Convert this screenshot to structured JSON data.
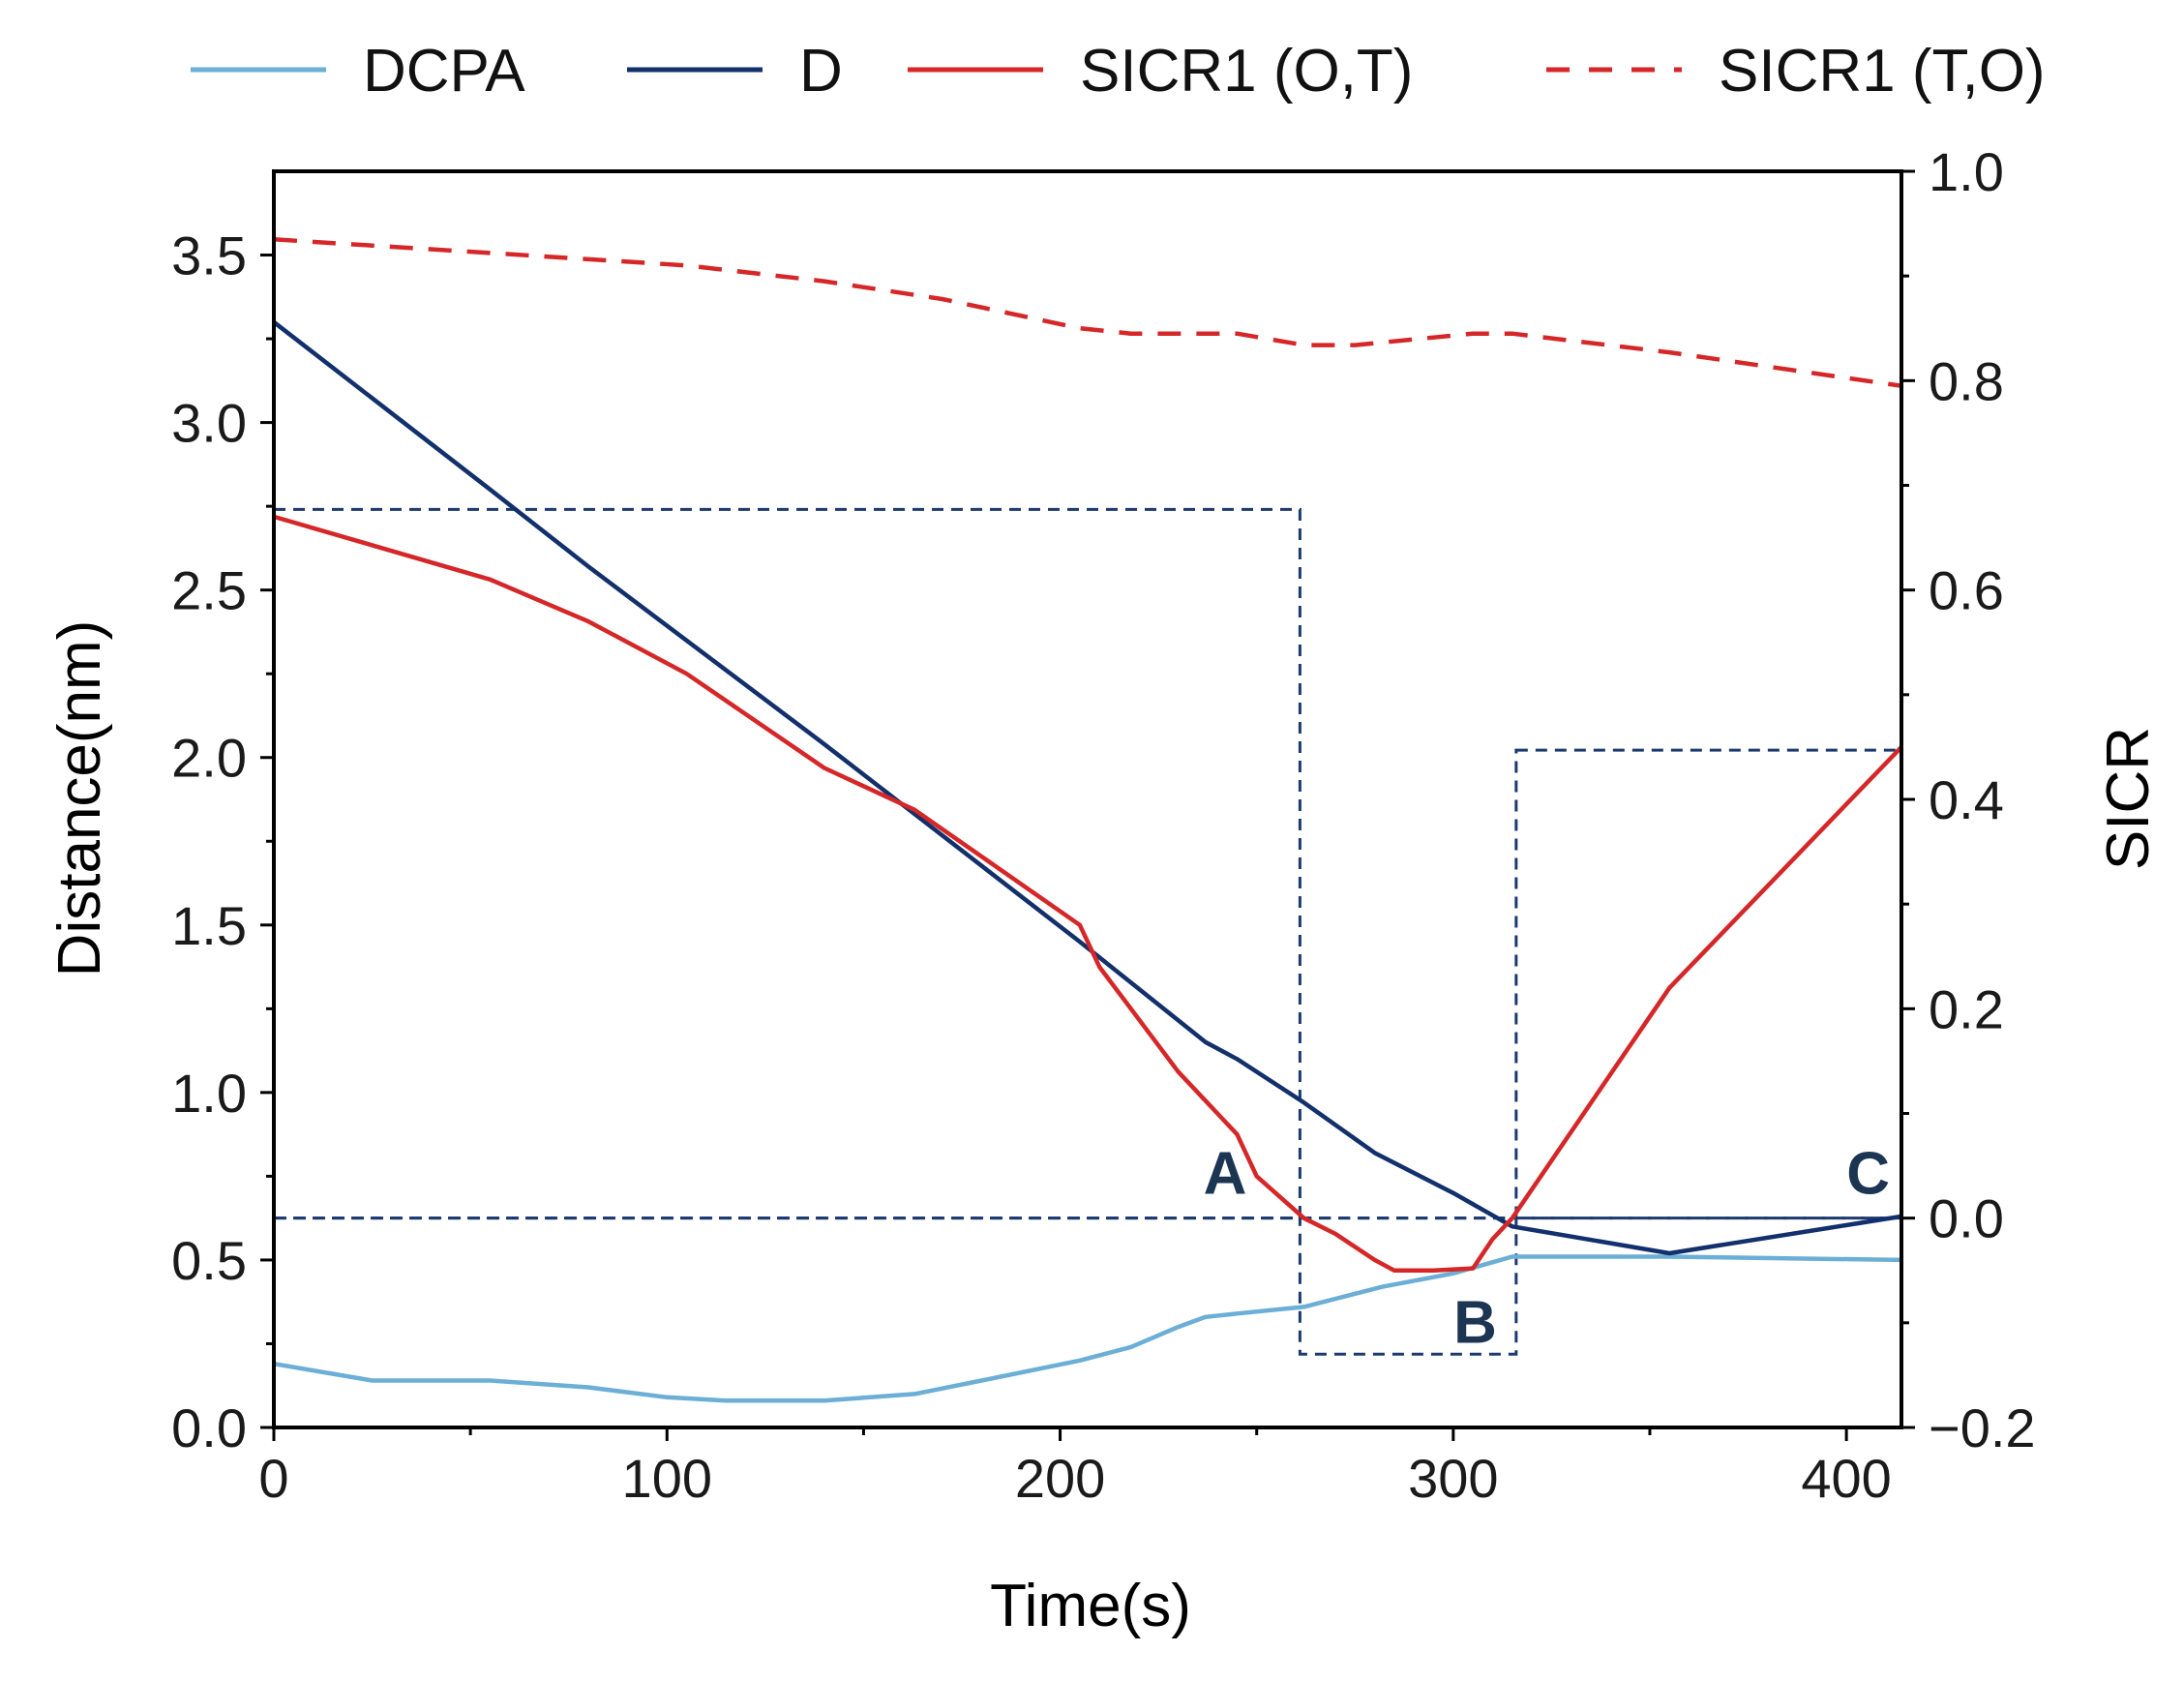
{
  "chart_data": {
    "type": "line",
    "title": "",
    "xlabel": "Time(s)",
    "ylabel": "Distance(nm)",
    "y2label": "SICR",
    "xlim": [
      0,
      414
    ],
    "ylim": [
      0,
      3.75
    ],
    "y2lim": [
      -0.2,
      1.0
    ],
    "x_ticks": [
      0,
      100,
      200,
      300,
      400
    ],
    "y_ticks": [
      0.0,
      0.5,
      1.0,
      1.5,
      2.0,
      2.5,
      3.0,
      3.5
    ],
    "y2_ticks": [
      -0.2,
      0.0,
      0.2,
      0.4,
      0.6,
      0.8,
      1.0
    ],
    "x_tick_labels": [
      "0",
      "100",
      "200",
      "300",
      "400"
    ],
    "y_tick_labels": [
      "0.0",
      "0.5",
      "1.0",
      "1.5",
      "2.0",
      "2.5",
      "3.0",
      "3.5"
    ],
    "y2_tick_labels": [
      "−0.2",
      "0.0",
      "0.2",
      "0.4",
      "0.6",
      "0.8",
      "1.0"
    ],
    "legend_position": "top",
    "series": [
      {
        "name": "DCPA",
        "axis": "left",
        "color": "#6baed6",
        "dash": "solid",
        "x": [
          0,
          25,
          55,
          80,
          100,
          115,
          140,
          163,
          180,
          205,
          218,
          230,
          237,
          245,
          262,
          282,
          300,
          315,
          330,
          355,
          414
        ],
        "y": [
          0.19,
          0.14,
          0.14,
          0.12,
          0.09,
          0.08,
          0.08,
          0.1,
          0.14,
          0.2,
          0.24,
          0.3,
          0.33,
          0.34,
          0.36,
          0.42,
          0.46,
          0.51,
          0.51,
          0.51,
          0.5
        ]
      },
      {
        "name": "D",
        "axis": "left",
        "color": "#12306b",
        "dash": "solid",
        "x": [
          0,
          55,
          80,
          140,
          205,
          237,
          245,
          262,
          280,
          300,
          315,
          355,
          414
        ],
        "y": [
          3.3,
          2.8,
          2.57,
          2.04,
          1.45,
          1.15,
          1.1,
          0.97,
          0.82,
          0.7,
          0.6,
          0.52,
          0.63
        ]
      },
      {
        "name": "SICR1 (O,T)",
        "axis": "right",
        "color": "#d62728",
        "dash": "solid",
        "x": [
          0,
          55,
          80,
          105,
          140,
          163,
          205,
          210,
          218,
          230,
          240,
          245,
          250,
          262,
          270,
          280,
          285,
          295,
          305,
          310,
          315,
          355,
          414
        ],
        "y": [
          0.67,
          0.61,
          0.57,
          0.52,
          0.43,
          0.39,
          0.28,
          0.24,
          0.2,
          0.14,
          0.1,
          0.08,
          0.04,
          0.0,
          -0.015,
          -0.04,
          -0.05,
          -0.05,
          -0.048,
          -0.02,
          0.0,
          0.22,
          0.45
        ]
      },
      {
        "name": "SICR1 (T,O)",
        "axis": "right",
        "color": "#d62728",
        "dash": "dashed",
        "x": [
          0,
          55,
          105,
          140,
          170,
          205,
          218,
          245,
          262,
          275,
          305,
          315,
          355,
          414
        ],
        "y": [
          0.935,
          0.922,
          0.91,
          0.895,
          0.878,
          0.85,
          0.845,
          0.845,
          0.834,
          0.834,
          0.845,
          0.845,
          0.827,
          0.795
        ]
      }
    ],
    "annotations": {
      "threshold_line": {
        "y2": 0.0,
        "x_range": [
          0,
          414
        ]
      },
      "regions": [
        {
          "label": "A",
          "x_range": [
            0,
            261
          ],
          "y2_range": [
            0.0,
            0.677
          ]
        },
        {
          "label": "B",
          "x_range": [
            261,
            316
          ],
          "y2_range": [
            -0.13,
            0.0
          ]
        },
        {
          "label": "C",
          "x_range": [
            316,
            414
          ],
          "y2_range": [
            0.0,
            0.447
          ]
        }
      ]
    }
  }
}
